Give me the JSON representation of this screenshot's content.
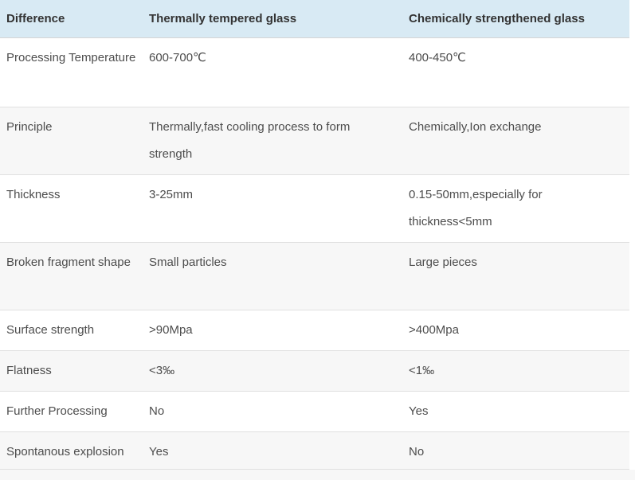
{
  "table": {
    "title_semantic": "glass-comparison-table",
    "columns": [
      "Difference",
      "Thermally tempered glass",
      "Chemically strengthened glass"
    ],
    "rows": [
      {
        "label": "Processing Temperature",
        "thermal": "600-700℃",
        "chemical": "400-450℃"
      },
      {
        "label": "Principle",
        "thermal": "Thermally,fast cooling process to form strength",
        "chemical": "Chemically,Ion exchange"
      },
      {
        "label": "Thickness",
        "thermal": "3-25mm",
        "chemical": "0.15-50mm,especially for thickness<5mm"
      },
      {
        "label": "Broken fragment shape",
        "thermal": "Small particles",
        "chemical": "Large pieces"
      },
      {
        "label": "Surface strength",
        "thermal": ">90Mpa",
        "chemical": ">400Mpa"
      },
      {
        "label": "Flatness",
        "thermal": "<3‰",
        "chemical": "<1‰"
      },
      {
        "label": "Further Processing",
        "thermal": "No",
        "chemical": "Yes"
      },
      {
        "label": "Spontanous explosion",
        "thermal": "Yes",
        "chemical": "No"
      }
    ],
    "colors": {
      "header_bg": "#d8eaf4",
      "zebra_bg": "#f7f7f7",
      "row_border": "#e0e0e0",
      "header_text": "#333333",
      "body_text": "#4d4d4d"
    }
  }
}
